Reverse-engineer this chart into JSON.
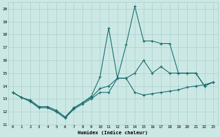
{
  "xlabel": "Humidex (Indice chaleur)",
  "bg_color": "#cce8e5",
  "grid_color": "#aacfcc",
  "line_color": "#1a6e6e",
  "xlim": [
    -0.5,
    23.5
  ],
  "ylim": [
    11,
    20.5
  ],
  "xticks": [
    0,
    1,
    2,
    3,
    4,
    5,
    6,
    7,
    8,
    9,
    10,
    11,
    12,
    13,
    14,
    15,
    16,
    17,
    18,
    19,
    20,
    21,
    22,
    23
  ],
  "yticks": [
    11,
    12,
    13,
    14,
    15,
    16,
    17,
    18,
    19,
    20
  ],
  "series1_x": [
    0,
    1,
    2,
    3,
    4,
    5,
    6,
    7,
    8,
    9,
    10,
    11,
    12,
    13,
    14,
    15,
    16,
    17,
    18,
    19,
    20,
    21,
    22,
    23
  ],
  "series1_y": [
    13.5,
    13.1,
    12.8,
    12.3,
    12.3,
    12.0,
    11.5,
    12.2,
    12.6,
    13.0,
    13.5,
    13.5,
    14.6,
    14.6,
    13.5,
    13.3,
    13.4,
    13.5,
    13.6,
    13.7,
    13.9,
    14.0,
    14.1,
    14.3
  ],
  "series2_x": [
    0,
    1,
    2,
    3,
    4,
    5,
    6,
    7,
    8,
    9,
    10,
    11,
    12,
    13,
    14,
    15,
    16,
    17,
    18,
    19,
    20,
    21,
    22,
    23
  ],
  "series2_y": [
    13.5,
    13.1,
    12.9,
    12.4,
    12.4,
    12.1,
    11.6,
    12.3,
    12.7,
    13.2,
    14.7,
    18.5,
    14.6,
    17.2,
    20.2,
    17.5,
    17.5,
    17.3,
    17.3,
    15.0,
    15.0,
    15.0,
    14.0,
    14.3
  ],
  "series3_x": [
    0,
    1,
    2,
    3,
    4,
    5,
    6,
    7,
    8,
    9,
    10,
    11,
    12,
    13,
    14,
    15,
    16,
    17,
    18,
    19,
    20,
    21,
    22,
    23
  ],
  "series3_y": [
    13.5,
    13.1,
    12.8,
    12.3,
    12.3,
    12.0,
    11.5,
    12.3,
    12.7,
    13.1,
    13.8,
    14.0,
    14.6,
    14.6,
    15.0,
    16.0,
    15.0,
    15.5,
    15.0,
    15.0,
    15.0,
    15.0,
    14.0,
    14.3
  ]
}
